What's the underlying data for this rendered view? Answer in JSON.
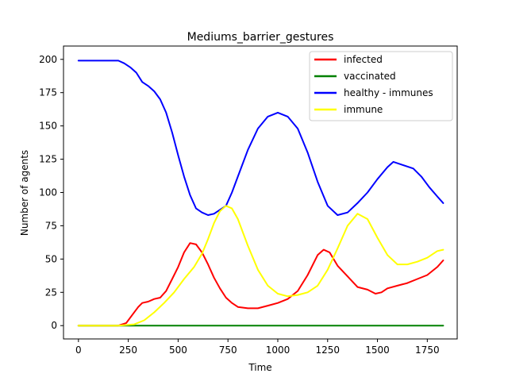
{
  "chart_data": {
    "type": "line",
    "title": "Mediums_barrier_gestures",
    "xlabel": "Time",
    "ylabel": "Number of agents",
    "xlim": [
      -75,
      1900
    ],
    "ylim": [
      -10,
      210
    ],
    "xticks": [
      0,
      250,
      500,
      750,
      1000,
      1250,
      1500,
      1750
    ],
    "yticks": [
      0,
      25,
      50,
      75,
      100,
      125,
      150,
      175,
      200
    ],
    "grid": false,
    "legend_position": "top-right",
    "series": [
      {
        "name": "infected",
        "color": "#ff0000",
        "points": [
          [
            0,
            0
          ],
          [
            100,
            0
          ],
          [
            200,
            0
          ],
          [
            240,
            2
          ],
          [
            270,
            8
          ],
          [
            300,
            14
          ],
          [
            320,
            17
          ],
          [
            350,
            18
          ],
          [
            380,
            20
          ],
          [
            410,
            21
          ],
          [
            440,
            26
          ],
          [
            470,
            35
          ],
          [
            500,
            44
          ],
          [
            530,
            55
          ],
          [
            560,
            62
          ],
          [
            590,
            61
          ],
          [
            620,
            55
          ],
          [
            650,
            46
          ],
          [
            680,
            36
          ],
          [
            710,
            28
          ],
          [
            740,
            21
          ],
          [
            770,
            17
          ],
          [
            800,
            14
          ],
          [
            850,
            13
          ],
          [
            900,
            13
          ],
          [
            950,
            15
          ],
          [
            1000,
            17
          ],
          [
            1050,
            20
          ],
          [
            1100,
            26
          ],
          [
            1150,
            38
          ],
          [
            1200,
            53
          ],
          [
            1230,
            57
          ],
          [
            1260,
            55
          ],
          [
            1300,
            45
          ],
          [
            1350,
            37
          ],
          [
            1400,
            29
          ],
          [
            1450,
            27
          ],
          [
            1490,
            24
          ],
          [
            1520,
            25
          ],
          [
            1550,
            28
          ],
          [
            1600,
            30
          ],
          [
            1650,
            32
          ],
          [
            1700,
            35
          ],
          [
            1750,
            38
          ],
          [
            1800,
            44
          ],
          [
            1830,
            49
          ]
        ]
      },
      {
        "name": "vaccinated",
        "color": "#008000",
        "points": [
          [
            0,
            0
          ],
          [
            1830,
            0
          ]
        ]
      },
      {
        "name": "healthy - immunes",
        "color": "#0000ff",
        "points": [
          [
            0,
            199
          ],
          [
            100,
            199
          ],
          [
            200,
            199
          ],
          [
            230,
            197
          ],
          [
            260,
            194
          ],
          [
            290,
            190
          ],
          [
            320,
            183
          ],
          [
            350,
            180
          ],
          [
            380,
            176
          ],
          [
            410,
            170
          ],
          [
            440,
            160
          ],
          [
            470,
            145
          ],
          [
            500,
            128
          ],
          [
            530,
            112
          ],
          [
            560,
            98
          ],
          [
            590,
            88
          ],
          [
            620,
            85
          ],
          [
            650,
            83
          ],
          [
            680,
            84
          ],
          [
            710,
            87
          ],
          [
            740,
            90
          ],
          [
            770,
            100
          ],
          [
            800,
            112
          ],
          [
            850,
            132
          ],
          [
            900,
            148
          ],
          [
            950,
            157
          ],
          [
            1000,
            160
          ],
          [
            1050,
            157
          ],
          [
            1100,
            148
          ],
          [
            1150,
            130
          ],
          [
            1200,
            108
          ],
          [
            1250,
            90
          ],
          [
            1300,
            83
          ],
          [
            1350,
            85
          ],
          [
            1400,
            92
          ],
          [
            1450,
            100
          ],
          [
            1500,
            110
          ],
          [
            1550,
            119
          ],
          [
            1580,
            123
          ],
          [
            1620,
            121
          ],
          [
            1680,
            118
          ],
          [
            1720,
            112
          ],
          [
            1760,
            104
          ],
          [
            1800,
            97
          ],
          [
            1830,
            92
          ]
        ]
      },
      {
        "name": "immune",
        "color": "#ffff00",
        "points": [
          [
            0,
            0
          ],
          [
            200,
            0
          ],
          [
            280,
            1
          ],
          [
            330,
            4
          ],
          [
            380,
            10
          ],
          [
            430,
            17
          ],
          [
            480,
            25
          ],
          [
            530,
            35
          ],
          [
            580,
            44
          ],
          [
            620,
            54
          ],
          [
            650,
            65
          ],
          [
            680,
            77
          ],
          [
            710,
            86
          ],
          [
            740,
            90
          ],
          [
            770,
            88
          ],
          [
            800,
            80
          ],
          [
            850,
            60
          ],
          [
            900,
            42
          ],
          [
            950,
            30
          ],
          [
            1000,
            24
          ],
          [
            1050,
            22
          ],
          [
            1100,
            23
          ],
          [
            1150,
            25
          ],
          [
            1200,
            30
          ],
          [
            1250,
            42
          ],
          [
            1300,
            58
          ],
          [
            1350,
            75
          ],
          [
            1400,
            84
          ],
          [
            1450,
            80
          ],
          [
            1500,
            66
          ],
          [
            1550,
            53
          ],
          [
            1600,
            46
          ],
          [
            1650,
            46
          ],
          [
            1700,
            48
          ],
          [
            1750,
            51
          ],
          [
            1800,
            56
          ],
          [
            1830,
            57
          ]
        ]
      }
    ]
  }
}
